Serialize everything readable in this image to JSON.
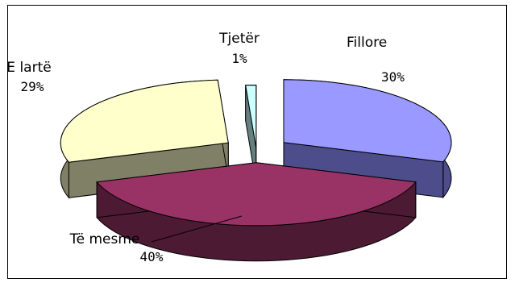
{
  "chart_data": {
    "type": "pie",
    "style": "3d-exploded",
    "slices": [
      {
        "label": "Fillore",
        "value": 30,
        "value_label": "30%",
        "color_top": "#9999ff",
        "color_side": "#4d4d8c"
      },
      {
        "label": "Të mesme",
        "value": 40,
        "value_label": "40%",
        "color_top": "#993366",
        "color_side": "#4d1a33"
      },
      {
        "label": "E lartë",
        "value": 29,
        "value_label": "29%",
        "color_top": "#ffffcc",
        "color_side": "#808066"
      },
      {
        "label": "Tjetër",
        "value": 1,
        "value_label": "1%",
        "color_top": "#ccffff",
        "color_side": "#668080"
      }
    ],
    "legend": "none",
    "labels_outside": true
  }
}
